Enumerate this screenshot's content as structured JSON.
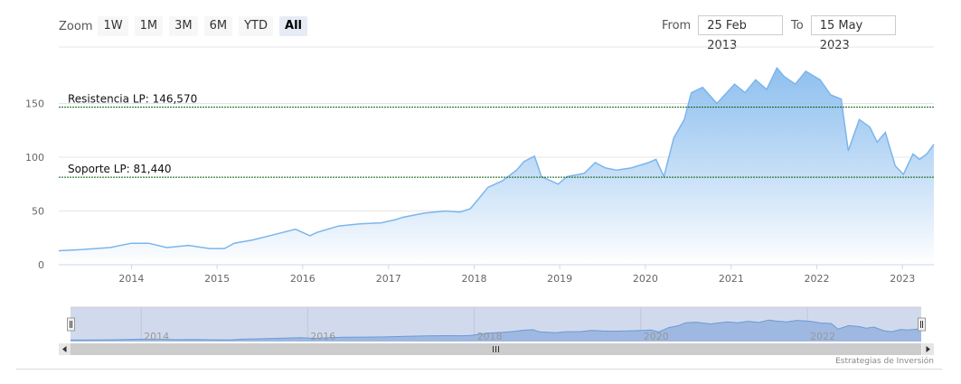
{
  "range_selector": {
    "zoom_label": "Zoom",
    "buttons": [
      {
        "label": "1W",
        "active": false
      },
      {
        "label": "1M",
        "active": false
      },
      {
        "label": "3M",
        "active": false
      },
      {
        "label": "6M",
        "active": false
      },
      {
        "label": "YTD",
        "active": false
      },
      {
        "label": "All",
        "active": true
      }
    ],
    "from_label": "From",
    "from_value": "25 Feb 2013",
    "to_label": "To",
    "to_value": "15 May 2023"
  },
  "credits": "Estrategias de Inversión",
  "colors": {
    "series_line": "#7cb5ec",
    "area_top": "#7cb5ec",
    "area_bottom": "#ffffff",
    "reference_line": "#0a5e0a",
    "navigator_mask": "rgba(102,133,194,0.3)"
  },
  "chart_data": {
    "type": "area",
    "ylim": [
      0,
      190
    ],
    "yticks": [
      "0",
      "50",
      "100",
      "150"
    ],
    "xticks": [
      "2014",
      "2015",
      "2016",
      "2017",
      "2018",
      "2019",
      "2020",
      "2021",
      "2022",
      "2023"
    ],
    "navigator_ticks": [
      "2014",
      "2016",
      "2018",
      "2020",
      "2022"
    ],
    "grid": true,
    "plot_lines": [
      {
        "label": "Resistencia LP: 146,570",
        "value": 146.57
      },
      {
        "label": "Soporte LP: 81,440",
        "value": 81.44
      }
    ],
    "series": [
      {
        "x": [
          "2013-02-25",
          "2013-06-01",
          "2013-10-01",
          "2014-01-01",
          "2014-03-15",
          "2014-06-01",
          "2014-09-01",
          "2014-12-01",
          "2015-02-01",
          "2015-03-15",
          "2015-06-01",
          "2015-09-01",
          "2015-12-01",
          "2016-02-01",
          "2016-03-01",
          "2016-06-01",
          "2016-09-01",
          "2016-12-01",
          "2017-02-01",
          "2017-03-01",
          "2017-06-01",
          "2017-09-01",
          "2017-11-01",
          "2017-12-15",
          "2018-01-15",
          "2018-03-01",
          "2018-05-01",
          "2018-07-01",
          "2018-08-01",
          "2018-09-15",
          "2018-10-15",
          "2018-12-25",
          "2019-02-01",
          "2019-04-15",
          "2019-06-01",
          "2019-07-15",
          "2019-09-01",
          "2019-11-01",
          "2020-01-15",
          "2020-02-15",
          "2020-03-20",
          "2020-05-01",
          "2020-06-15",
          "2020-07-15",
          "2020-09-01",
          "2020-11-01",
          "2021-01-15",
          "2021-03-01",
          "2021-04-15",
          "2021-06-01",
          "2021-07-15",
          "2021-08-15",
          "2021-10-01",
          "2021-11-15",
          "2022-01-15",
          "2022-03-01",
          "2022-04-15",
          "2022-05-15",
          "2022-07-01",
          "2022-08-15",
          "2022-09-15",
          "2022-10-20",
          "2022-12-01",
          "2023-01-05",
          "2023-02-15",
          "2023-03-15",
          "2023-04-15",
          "2023-05-15"
        ],
        "values": [
          13,
          14,
          16,
          20,
          20,
          16,
          18,
          15,
          15,
          20,
          23,
          28,
          33,
          27,
          30,
          36,
          38,
          39,
          42,
          44,
          48,
          50,
          49,
          52,
          60,
          72,
          78,
          88,
          96,
          101,
          82,
          75,
          82,
          85,
          95,
          90,
          88,
          90,
          95,
          98,
          82,
          118,
          135,
          160,
          165,
          150,
          168,
          160,
          172,
          163,
          183,
          175,
          168,
          180,
          172,
          158,
          154,
          106,
          135,
          128,
          114,
          123,
          92,
          84,
          103,
          98,
          103,
          112
        ]
      }
    ]
  }
}
